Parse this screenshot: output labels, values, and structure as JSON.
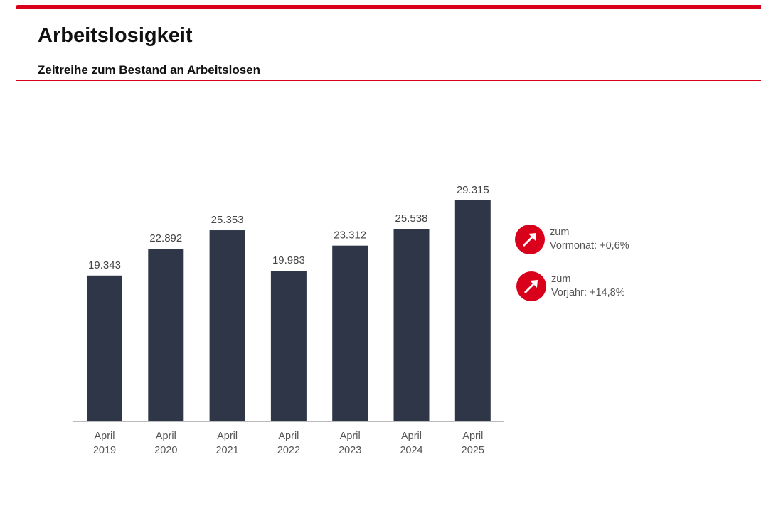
{
  "header": {
    "title": "Arbeitslosigkeit",
    "subtitle": "Zeitreihe zum Bestand an Arbeitslosen"
  },
  "chart_data": {
    "type": "bar",
    "categories": [
      [
        "April",
        "2019"
      ],
      [
        "April",
        "2020"
      ],
      [
        "April",
        "2021"
      ],
      [
        "April",
        "2022"
      ],
      [
        "April",
        "2023"
      ],
      [
        "April",
        "2024"
      ],
      [
        "April",
        "2025"
      ]
    ],
    "values": [
      19343,
      22892,
      25353,
      19983,
      23312,
      25538,
      29315
    ],
    "data_labels": [
      "19.343",
      "22.892",
      "25.353",
      "19.983",
      "23.312",
      "25.538",
      "29.315"
    ],
    "bar_color": "#2e3648",
    "grid": false,
    "ylim": [
      0,
      29315
    ]
  },
  "indicators": [
    {
      "line1": "zum",
      "line2": "Vormonat:",
      "value": "+0,6%",
      "icon": "arrow-up-right-icon",
      "color": "#d9001b"
    },
    {
      "line1": "zum",
      "line2": "Vorjahr:",
      "value": "+14,8%",
      "icon": "arrow-up-right-icon",
      "color": "#d9001b"
    }
  ]
}
